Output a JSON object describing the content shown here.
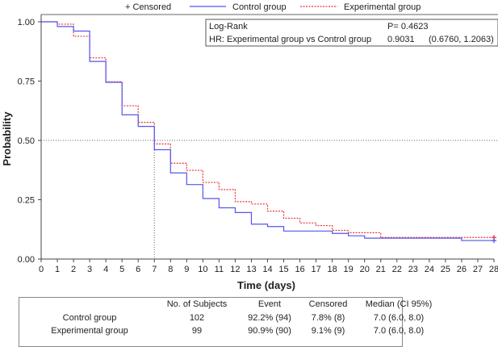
{
  "chart_data": {
    "type": "line",
    "title": "",
    "xlabel": "Time (days)",
    "ylabel": "Probability",
    "xlim": [
      0,
      28
    ],
    "ylim": [
      0,
      1
    ],
    "xticks": [
      "0",
      "1",
      "2",
      "3",
      "4",
      "5",
      "6",
      "7",
      "8",
      "9",
      "10",
      "11",
      "12",
      "13",
      "14",
      "15",
      "16",
      "17",
      "18",
      "19",
      "20",
      "21",
      "22",
      "23",
      "24",
      "25",
      "26",
      "27",
      "28"
    ],
    "yticks": [
      "0.00",
      "0.25",
      "0.50",
      "0.75",
      "1.00"
    ],
    "legend": {
      "censored": "+ Censored",
      "placement": "top"
    },
    "reference_lines": {
      "y": 0.5,
      "x": 7
    },
    "series": [
      {
        "name": "Control group",
        "color": "#5555ee",
        "style": "solid",
        "steps": [
          [
            0,
            1.0
          ],
          [
            1,
            0.98
          ],
          [
            2,
            0.961
          ],
          [
            3,
            0.833
          ],
          [
            4,
            0.745
          ],
          [
            5,
            0.608
          ],
          [
            6,
            0.559
          ],
          [
            7,
            0.461
          ],
          [
            8,
            0.363
          ],
          [
            9,
            0.314
          ],
          [
            10,
            0.255
          ],
          [
            11,
            0.216
          ],
          [
            12,
            0.196
          ],
          [
            13,
            0.147
          ],
          [
            14,
            0.137
          ],
          [
            15,
            0.118
          ],
          [
            18,
            0.108
          ],
          [
            19,
            0.098
          ],
          [
            20,
            0.088
          ],
          [
            26,
            0.078
          ]
        ],
        "end": 28,
        "censored_at": [
          28
        ]
      },
      {
        "name": "Experimental group",
        "color": "#ee3333",
        "style": "dashed",
        "steps": [
          [
            0,
            1.0
          ],
          [
            1,
            0.99
          ],
          [
            2,
            0.939
          ],
          [
            3,
            0.848
          ],
          [
            4,
            0.747
          ],
          [
            5,
            0.646
          ],
          [
            6,
            0.576
          ],
          [
            7,
            0.485
          ],
          [
            8,
            0.404
          ],
          [
            9,
            0.374
          ],
          [
            10,
            0.323
          ],
          [
            11,
            0.293
          ],
          [
            12,
            0.242
          ],
          [
            13,
            0.232
          ],
          [
            14,
            0.202
          ],
          [
            15,
            0.172
          ],
          [
            16,
            0.152
          ],
          [
            17,
            0.141
          ],
          [
            18,
            0.121
          ],
          [
            19,
            0.111
          ],
          [
            21,
            0.091
          ]
        ],
        "end": 28,
        "censored_at": [
          28
        ]
      }
    ],
    "stats_box": {
      "row1": {
        "label": "Log-Rank",
        "value": "P= 0.4623"
      },
      "row2": {
        "label": "HR: Experimental group vs Control group",
        "value": "0.9031",
        "ci": "(0.6760, 1.2063)"
      }
    },
    "summary_table": {
      "headers": [
        "",
        "No. of Subjects",
        "Event",
        "Censored",
        "Median (CI 95%)"
      ],
      "rows": [
        [
          "Control group",
          "102",
          "92.2% (94)",
          "7.8% (8)",
          "7.0 (6.0, 8.0)"
        ],
        [
          "Experimental group",
          "99",
          "90.9% (90)",
          "9.1% (9)",
          "7.0 (6.0, 8.0)"
        ]
      ]
    }
  }
}
